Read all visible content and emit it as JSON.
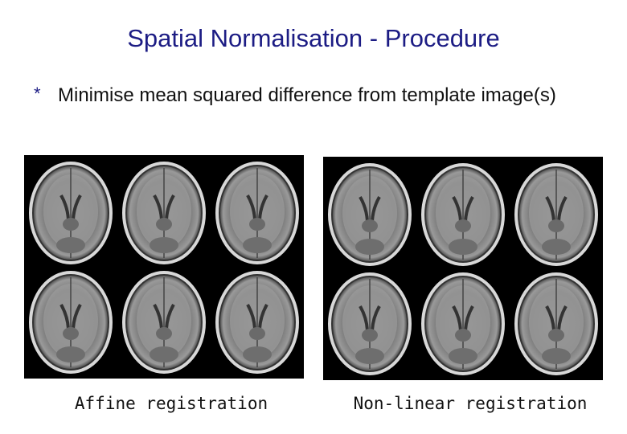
{
  "title": "Spatial Normalisation - Procedure",
  "bullets": [
    {
      "marker": "*",
      "text": "Minimise mean squared difference from template image(s)"
    }
  ],
  "panels": [
    {
      "caption": "Affine registration"
    },
    {
      "caption": "Non-linear registration"
    }
  ]
}
